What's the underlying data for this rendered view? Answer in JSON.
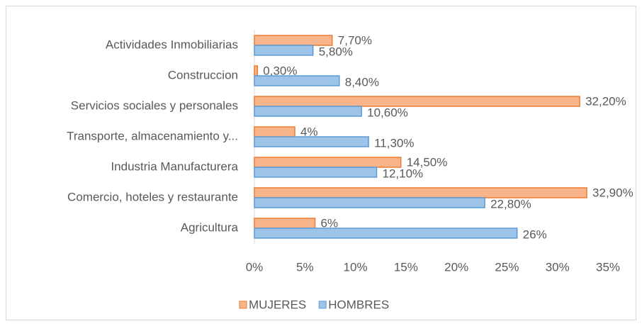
{
  "chart_data": {
    "type": "bar",
    "orientation": "horizontal",
    "categories": [
      "Actividades Inmobiliarias",
      "Construccion",
      "Servicios sociales y personales",
      "Transporte, almacenamiento y...",
      "Industria Manufacturera",
      "Comercio, hoteles y restaurante",
      "Agricultura"
    ],
    "series": [
      {
        "name": "MUJERES",
        "color": "#f8b48a",
        "edge": "#ed7d31",
        "values": [
          7.7,
          0.3,
          32.2,
          4,
          14.5,
          32.9,
          6
        ],
        "value_labels": [
          "7,70%",
          "0,30%",
          "32,20%",
          "4%",
          "14,50%",
          "32,90%",
          "6%"
        ]
      },
      {
        "name": "HOMBRES",
        "color": "#9dc3e6",
        "edge": "#5b9bd5",
        "values": [
          5.8,
          8.4,
          10.6,
          11.3,
          12.1,
          22.8,
          26
        ],
        "value_labels": [
          "5,80%",
          "8,40%",
          "10,60%",
          "11,30%",
          "12,10%",
          "22,80%",
          "26%"
        ]
      }
    ],
    "xlim": [
      0,
      35
    ],
    "xticks": [
      {
        "value": 0,
        "label": "0%"
      },
      {
        "value": 5,
        "label": "5%"
      },
      {
        "value": 10,
        "label": "10%"
      },
      {
        "value": 15,
        "label": "15%"
      },
      {
        "value": 20,
        "label": "20%"
      },
      {
        "value": 25,
        "label": "25%"
      },
      {
        "value": 30,
        "label": "30%"
      },
      {
        "value": 35,
        "label": "35%"
      }
    ],
    "grid": false,
    "legend": "bottom"
  }
}
